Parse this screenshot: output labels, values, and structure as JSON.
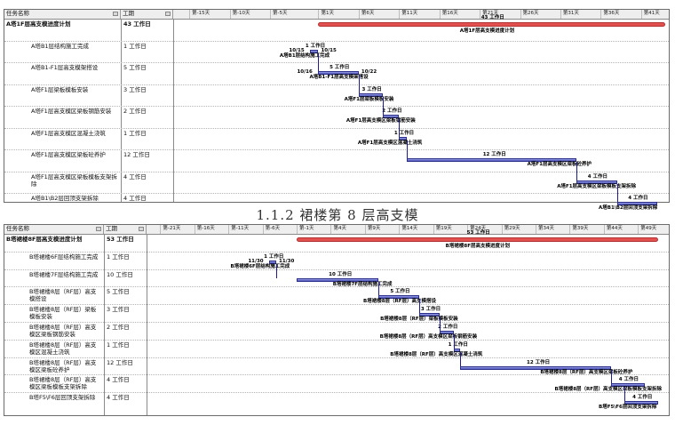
{
  "caption": "1.1.2 裙楼第 8 层高支模",
  "gantt1": {
    "col_task": "任务名称",
    "col_dur": "工期",
    "ticks": [
      "第-15天",
      "第-10天",
      "第-5天",
      "第1天",
      "第6天",
      "第11天",
      "第16天",
      "第21天",
      "第26天",
      "第31天",
      "第36天",
      "第41天"
    ],
    "summary": {
      "name": "A塔1F层高支模进度计划",
      "duration": "43 工作日",
      "bar_label": "A塔1F层高支模进度计划",
      "dur_label": "43 工作日"
    },
    "tasks": [
      {
        "name": "A塔B1层结构施工完成",
        "duration": "1 工作日",
        "bar_label": "A塔B1层结构施工完成",
        "dur_label": "1 工作日",
        "start_label": "10/15",
        "finish_label": "10/15"
      },
      {
        "name": "A塔B1-F1层高支模架搭设",
        "duration": "5 工作日",
        "bar_label": "A塔B1-F1层高支模架搭设",
        "dur_label": "5 工作日",
        "start_label": "10/16",
        "finish_label": "10/22"
      },
      {
        "name": "A塔F1层梁板模板安装",
        "duration": "3 工作日",
        "bar_label": "A塔F1层梁板模板安装",
        "dur_label": "3 工作日"
      },
      {
        "name": "A塔F1层高支模区梁板钢筋安装",
        "duration": "2 工作日",
        "bar_label": "A塔F1层高支模区梁板钢筋安装",
        "dur_label": "2 工作日"
      },
      {
        "name": "A塔F1层高支模区混凝土浇筑",
        "duration": "1 工作日",
        "bar_label": "A塔F1层高支模区混凝土浇筑",
        "dur_label": "1 工作日"
      },
      {
        "name": "A塔F1层高支模区梁板砼养护",
        "duration": "12 工作日",
        "bar_label": "A塔F1层高支模区梁板砼养护",
        "dur_label": "12 工作日"
      },
      {
        "name": "A塔F1层高支模区梁板模板支架拆除",
        "duration": "4 工作日",
        "bar_label": "A塔F1层高支模区梁板模板支架拆除",
        "dur_label": "4 工作日"
      },
      {
        "name": "A塔B1\\B2层回顶支架拆除",
        "duration": "4 工作日",
        "bar_label": "A塔B1\\B2层回顶支架拆除",
        "dur_label": "4 工作日"
      }
    ]
  },
  "gantt2": {
    "col_task": "任务名称",
    "col_dur": "工期",
    "ticks": [
      "第-21天",
      "第-16天",
      "第-11天",
      "第-6天",
      "第-1天",
      "第4天",
      "第9天",
      "第14天",
      "第19天",
      "第24天",
      "第29天",
      "第34天",
      "第39天",
      "第44天",
      "第49天"
    ],
    "summary": {
      "name": "B塔裙楼8F层高支模进度计划",
      "duration": "53 工作日",
      "bar_label": "B塔裙楼8F层高支模进度计划",
      "dur_label": "53 工作日"
    },
    "tasks": [
      {
        "name": "B塔裙楼6F层结构施工完成",
        "duration": "1 工作日",
        "bar_label": "B塔裙楼6F层结构施工完成",
        "dur_label": "1 工作日",
        "start_label": "11/30",
        "finish_label": "11/30"
      },
      {
        "name": "B塔裙楼7F层结构施工完成",
        "duration": "10 工作日",
        "bar_label": "B塔裙楼7F层结构施工完成",
        "dur_label": "10 工作日"
      },
      {
        "name": "B塔裙楼8层（RF层）高支模搭设",
        "duration": "5 工作日",
        "bar_label": "B塔裙楼8层（RF层）高支模搭设",
        "dur_label": "5 工作日"
      },
      {
        "name": "B塔裙楼8层（RF层）梁板模板安装",
        "duration": "3 工作日",
        "bar_label": "B塔裙楼8层（RF层）梁板模板安装",
        "dur_label": "3 工作日"
      },
      {
        "name": "B塔裙楼8层（RF层）高支模区梁板钢筋安装",
        "duration": "2 工作日",
        "bar_label": "B塔裙楼8层（RF层）高支模区梁板钢筋安装",
        "dur_label": "2 工作日"
      },
      {
        "name": "B塔裙楼8层（RF层）高支模区混凝土浇筑",
        "duration": "1 工作日",
        "bar_label": "B塔裙楼8层（RF层）高支模区混凝土浇筑",
        "dur_label": "1 工作日"
      },
      {
        "name": "B塔裙楼8层（RF层）高支模区梁板砼养护",
        "duration": "12 工作日",
        "bar_label": "B塔裙楼8层（RF层）高支模区梁板砼养护",
        "dur_label": "12 工作日"
      },
      {
        "name": "B塔裙楼8层（RF层）高支模区梁板模板支架拆除",
        "duration": "4 工作日",
        "bar_label": "B塔裙楼8层（RF层）高支模区梁板模板支架拆除",
        "dur_label": "4 工作日"
      },
      {
        "name": "B塔F5\\F6层回顶支架拆除",
        "duration": "4 工作日",
        "bar_label": "B塔F5\\F6层回顶支架拆除",
        "dur_label": "4 工作日"
      }
    ]
  },
  "chart_data": [
    {
      "type": "gantt",
      "title": "",
      "x_unit": "day",
      "xlim": [
        -17,
        44
      ],
      "x_ticks": [
        -15,
        -10,
        -5,
        1,
        6,
        11,
        16,
        21,
        26,
        31,
        36,
        41
      ],
      "summary": {
        "name": "A塔1F层高支模进度计划",
        "start": 1,
        "duration": 43
      },
      "tasks": [
        {
          "name": "A塔B1层结构施工完成",
          "start": 0,
          "duration": 1
        },
        {
          "name": "A塔B1-F1层高支模架搭设",
          "start": 1,
          "duration": 5
        },
        {
          "name": "A塔F1层梁板模板安装",
          "start": 6,
          "duration": 3
        },
        {
          "name": "A塔F1层高支模区梁板钢筋安装",
          "start": 9,
          "duration": 2
        },
        {
          "name": "A塔F1层高支模区混凝土浇筑",
          "start": 11,
          "duration": 1
        },
        {
          "name": "A塔F1层高支模区梁板砼养护",
          "start": 12,
          "duration": 21
        },
        {
          "name": "A塔F1层高支模区梁板模板支架拆除",
          "start": 33,
          "duration": 5
        },
        {
          "name": "A塔B1\\B2层回顶支架拆除",
          "start": 38,
          "duration": 5
        }
      ]
    },
    {
      "type": "gantt",
      "title": "",
      "x_unit": "day",
      "xlim": [
        -23,
        53
      ],
      "x_ticks": [
        -21,
        -16,
        -11,
        -6,
        -1,
        4,
        9,
        14,
        19,
        24,
        29,
        34,
        39,
        44,
        49
      ],
      "summary": {
        "name": "B塔裙楼8F层高支模进度计划",
        "start": -1,
        "duration": 53
      },
      "tasks": [
        {
          "name": "B塔裙楼6F层结构施工完成",
          "start": -5,
          "duration": 1
        },
        {
          "name": "B塔裙楼7F层结构施工完成",
          "start": -1,
          "duration": 12
        },
        {
          "name": "B塔裙楼8层（RF层）高支模搭设",
          "start": 11,
          "duration": 6
        },
        {
          "name": "B塔裙楼8层（RF层）梁板模板安装",
          "start": 17,
          "duration": 3
        },
        {
          "name": "B塔裙楼8层（RF层）高支模区梁板钢筋安装",
          "start": 20,
          "duration": 2
        },
        {
          "name": "B塔裙楼8层（RF层）高支模区混凝土浇筑",
          "start": 22,
          "duration": 1
        },
        {
          "name": "B塔裙楼8层（RF层）高支模区梁板砼养护",
          "start": 23,
          "duration": 22
        },
        {
          "name": "B塔裙楼8层（RF层）高支模区梁板模板支架拆除",
          "start": 45,
          "duration": 5
        },
        {
          "name": "B塔F5\\F6层回顶支架拆除",
          "start": 47,
          "duration": 5
        }
      ]
    }
  ]
}
